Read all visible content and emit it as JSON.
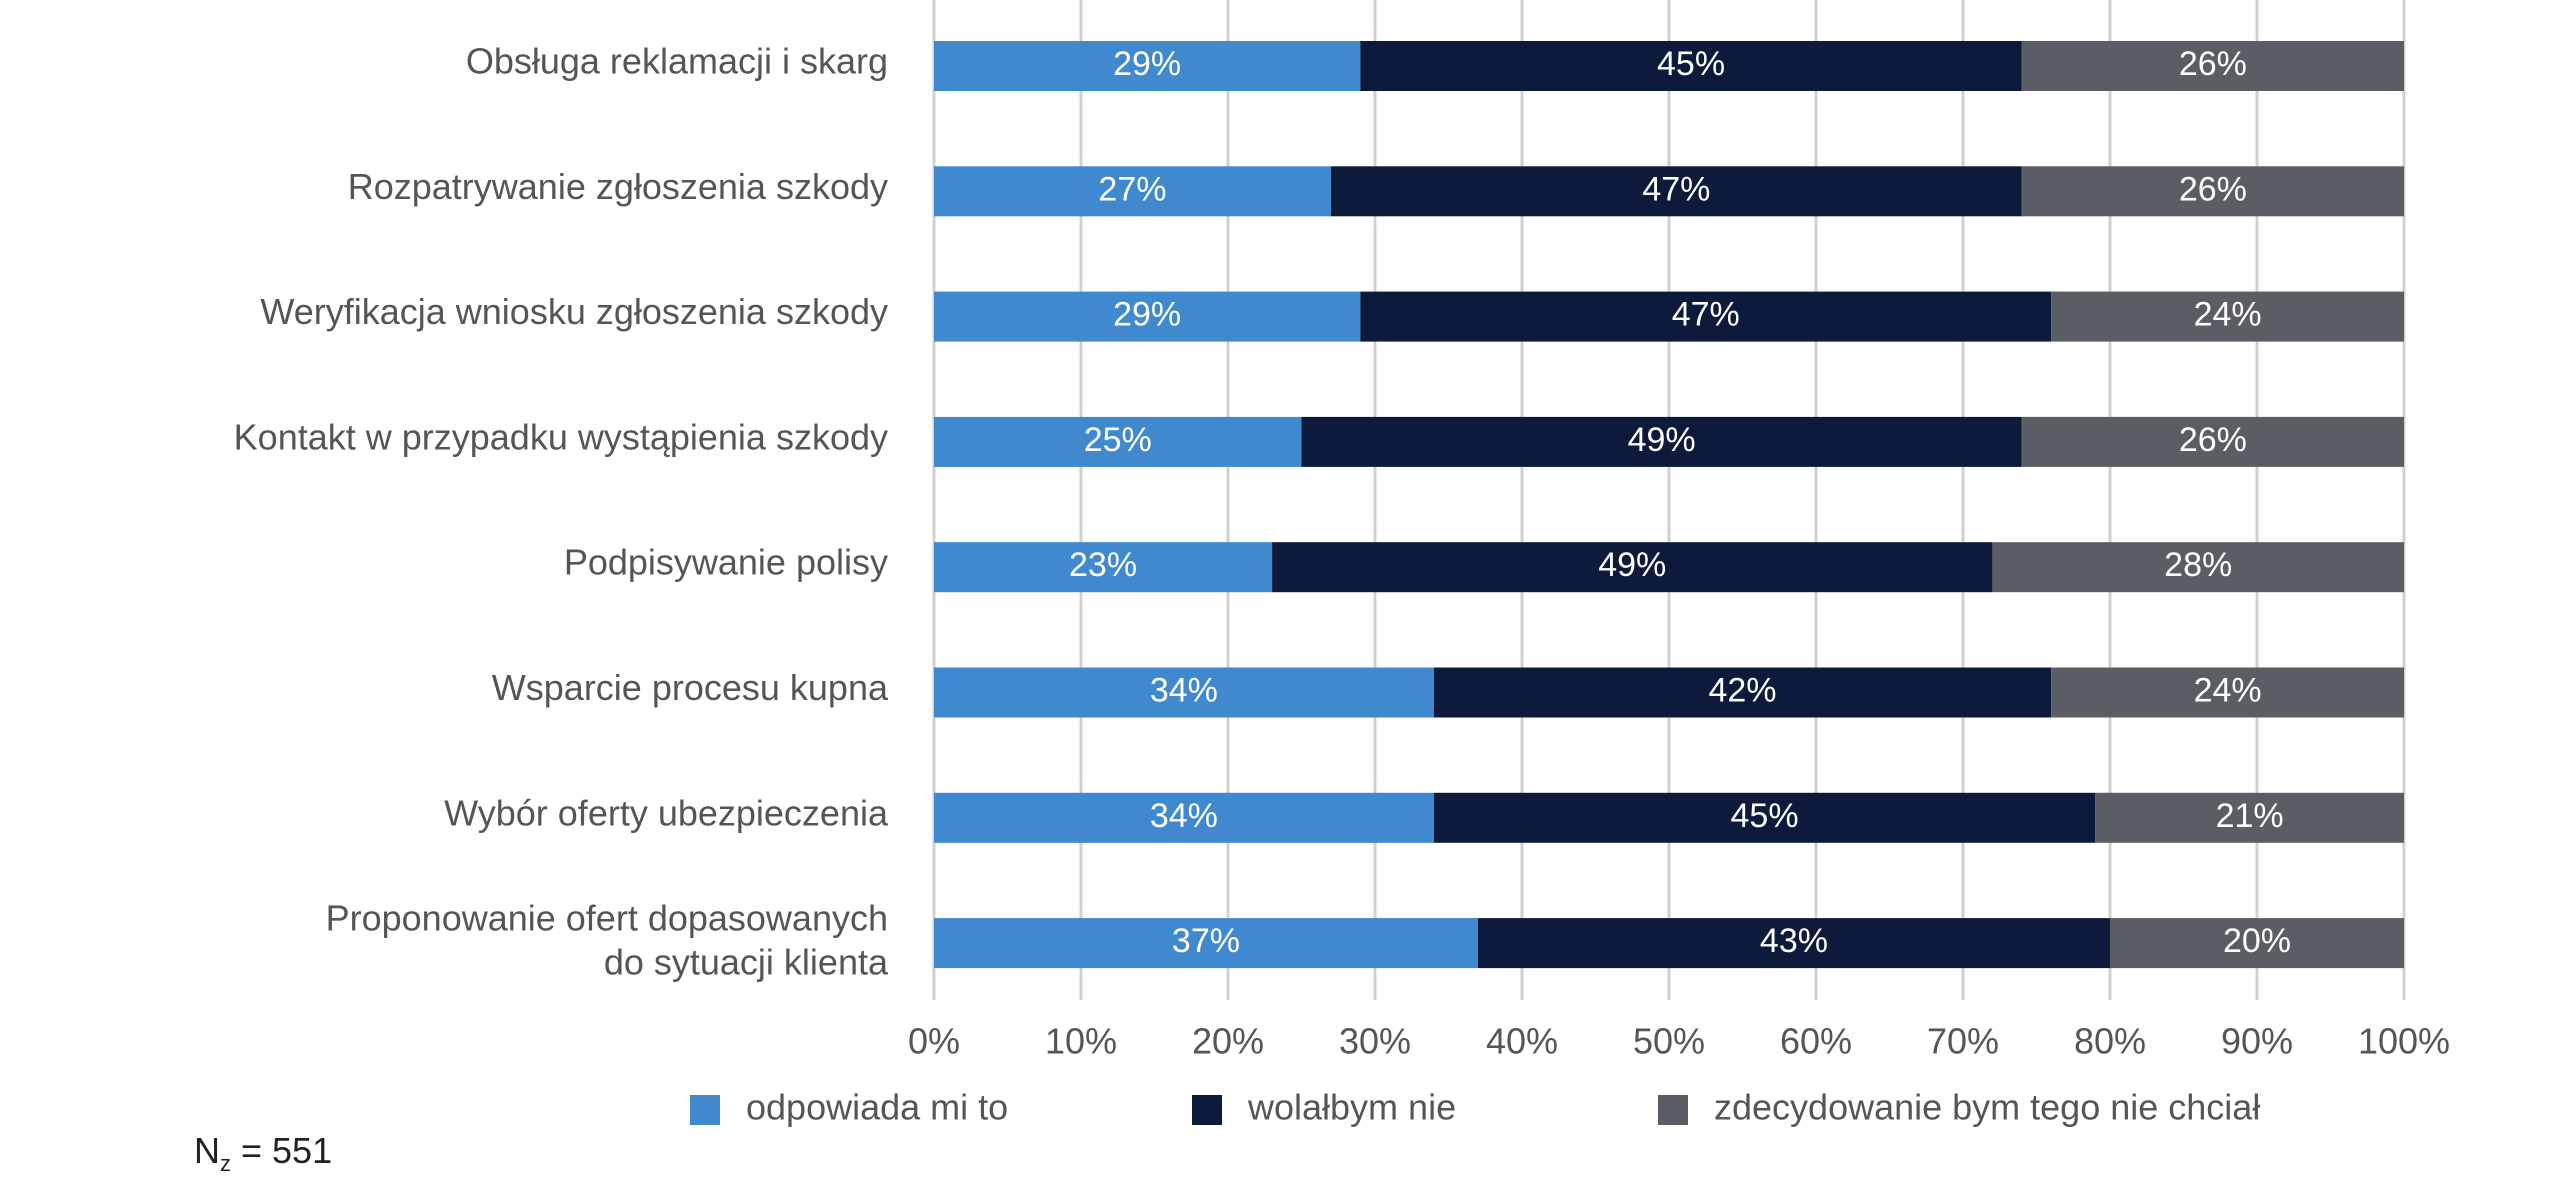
{
  "chart_data": {
    "type": "bar",
    "orientation": "horizontal",
    "stacked": true,
    "categories": [
      [
        "Obsługa reklamacji i skarg"
      ],
      [
        "Rozpatrywanie zgłoszenia szkody"
      ],
      [
        "Weryfikacja wniosku zgłoszenia szkody"
      ],
      [
        "Kontakt w przypadku wystąpienia szkody"
      ],
      [
        "Podpisywanie polisy"
      ],
      [
        "Wsparcie procesu kupna"
      ],
      [
        "Wybór oferty ubezpieczenia"
      ],
      [
        "Proponowanie ofert dopasowanych",
        "do sytuacji klienta"
      ]
    ],
    "series": [
      {
        "name": "odpowiada mi to",
        "color": "#4189cf",
        "values": [
          29,
          27,
          29,
          25,
          23,
          34,
          34,
          37
        ]
      },
      {
        "name": "wolałbym nie",
        "color": "#0d1a3c",
        "values": [
          45,
          47,
          47,
          49,
          49,
          42,
          45,
          43
        ]
      },
      {
        "name": "zdecydowanie bym tego nie chciał",
        "color": "#5a5d63",
        "values": [
          26,
          26,
          24,
          26,
          28,
          24,
          21,
          20
        ]
      }
    ],
    "value_suffix": "%",
    "xlim": [
      0,
      100
    ],
    "x_ticks": [
      "0%",
      "10%",
      "20%",
      "30%",
      "40%",
      "50%",
      "60%",
      "70%",
      "80%",
      "90%",
      "100%"
    ],
    "grid": true,
    "legend_position": "bottom"
  },
  "note": {
    "prefix": "N",
    "sub": "z",
    "suffix": " = 551"
  }
}
